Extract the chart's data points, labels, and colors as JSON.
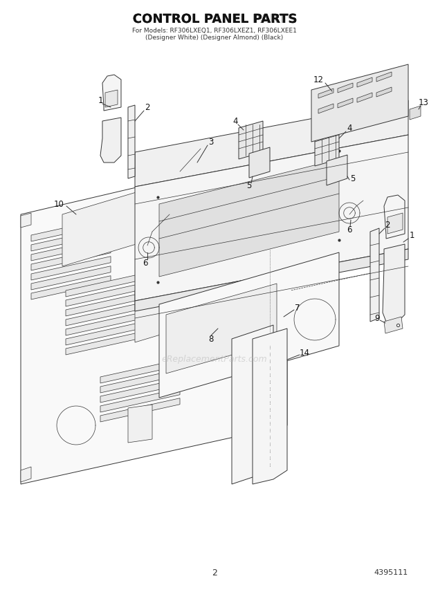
{
  "title_line1": "CONTROL PANEL PARTS",
  "title_line2": "For Models: RF306LXEQ1, RF306LXEZ1, RF306LXEE1",
  "title_line3": "(Designer White) (Designer Almond) (Black)",
  "page_number": "2",
  "part_number": "4395111",
  "background_color": "#ffffff",
  "line_color": "#333333",
  "label_color": "#111111",
  "watermark_color": "#bbbbbb",
  "watermark_text": "eReplacementParts.com",
  "fig_width": 6.2,
  "fig_height": 8.56,
  "dpi": 100
}
